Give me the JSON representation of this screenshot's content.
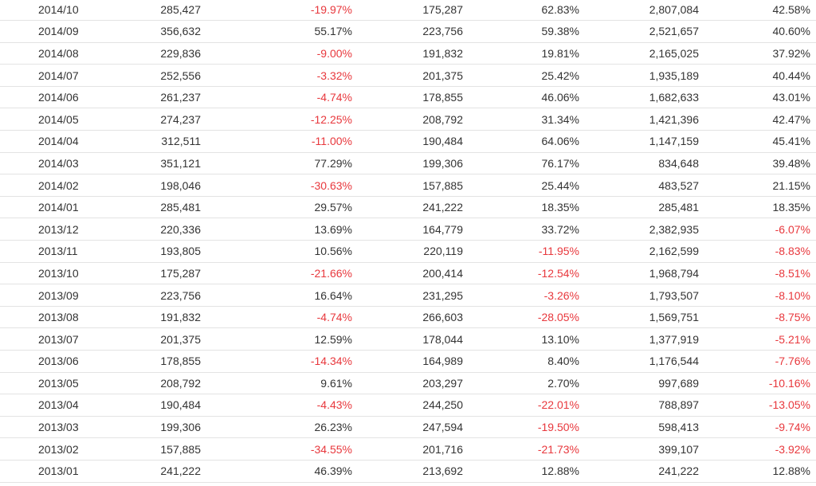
{
  "table": {
    "rows": [
      [
        "2014/10",
        "285,427",
        "-19.97%",
        "175,287",
        "62.83%",
        "2,807,084",
        "42.58%"
      ],
      [
        "2014/09",
        "356,632",
        "55.17%",
        "223,756",
        "59.38%",
        "2,521,657",
        "40.60%"
      ],
      [
        "2014/08",
        "229,836",
        "-9.00%",
        "191,832",
        "19.81%",
        "2,165,025",
        "37.92%"
      ],
      [
        "2014/07",
        "252,556",
        "-3.32%",
        "201,375",
        "25.42%",
        "1,935,189",
        "40.44%"
      ],
      [
        "2014/06",
        "261,237",
        "-4.74%",
        "178,855",
        "46.06%",
        "1,682,633",
        "43.01%"
      ],
      [
        "2014/05",
        "274,237",
        "-12.25%",
        "208,792",
        "31.34%",
        "1,421,396",
        "42.47%"
      ],
      [
        "2014/04",
        "312,511",
        "-11.00%",
        "190,484",
        "64.06%",
        "1,147,159",
        "45.41%"
      ],
      [
        "2014/03",
        "351,121",
        "77.29%",
        "199,306",
        "76.17%",
        "834,648",
        "39.48%"
      ],
      [
        "2014/02",
        "198,046",
        "-30.63%",
        "157,885",
        "25.44%",
        "483,527",
        "21.15%"
      ],
      [
        "2014/01",
        "285,481",
        "29.57%",
        "241,222",
        "18.35%",
        "285,481",
        "18.35%"
      ],
      [
        "2013/12",
        "220,336",
        "13.69%",
        "164,779",
        "33.72%",
        "2,382,935",
        "-6.07%"
      ],
      [
        "2013/11",
        "193,805",
        "10.56%",
        "220,119",
        "-11.95%",
        "2,162,599",
        "-8.83%"
      ],
      [
        "2013/10",
        "175,287",
        "-21.66%",
        "200,414",
        "-12.54%",
        "1,968,794",
        "-8.51%"
      ],
      [
        "2013/09",
        "223,756",
        "16.64%",
        "231,295",
        "-3.26%",
        "1,793,507",
        "-8.10%"
      ],
      [
        "2013/08",
        "191,832",
        "-4.74%",
        "266,603",
        "-28.05%",
        "1,569,751",
        "-8.75%"
      ],
      [
        "2013/07",
        "201,375",
        "12.59%",
        "178,044",
        "13.10%",
        "1,377,919",
        "-5.21%"
      ],
      [
        "2013/06",
        "178,855",
        "-14.34%",
        "164,989",
        "8.40%",
        "1,176,544",
        "-7.76%"
      ],
      [
        "2013/05",
        "208,792",
        "9.61%",
        "203,297",
        "2.70%",
        "997,689",
        "-10.16%"
      ],
      [
        "2013/04",
        "190,484",
        "-4.43%",
        "244,250",
        "-22.01%",
        "788,897",
        "-13.05%"
      ],
      [
        "2013/03",
        "199,306",
        "26.23%",
        "247,594",
        "-19.50%",
        "598,413",
        "-9.74%"
      ],
      [
        "2013/02",
        "157,885",
        "-34.55%",
        "201,716",
        "-21.73%",
        "399,107",
        "-3.92%"
      ],
      [
        "2013/01",
        "241,222",
        "46.39%",
        "213,692",
        "12.88%",
        "241,222",
        "12.88%"
      ]
    ]
  },
  "colors": {
    "text": "#333333",
    "negative": "#e8383d",
    "row_border": "#e3e3e3"
  }
}
